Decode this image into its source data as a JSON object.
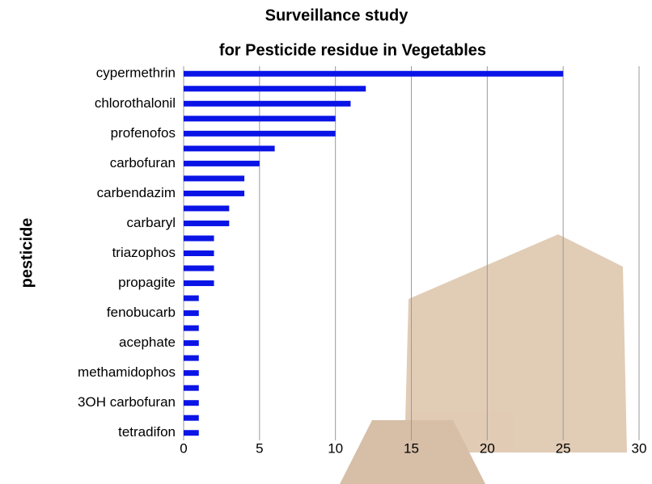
{
  "chart_data": {
    "type": "bar",
    "orientation": "horizontal",
    "title": [
      "Surveillance study",
      "for Pesticide residue in Vegetables"
    ],
    "y_label": "pesticide",
    "categories": [
      "cypermethrin",
      null,
      "chlorothalonil",
      null,
      "profenofos",
      null,
      "carbofuran",
      null,
      "carbendazim",
      null,
      "carbaryl",
      null,
      "triazophos",
      null,
      "propagite",
      null,
      "fenobucarb",
      null,
      "acephate",
      null,
      "methamidophos",
      null,
      "3OH carbofuran",
      null,
      "tetradifon"
    ],
    "values": [
      25,
      12,
      11,
      10,
      10,
      6,
      5,
      4,
      4,
      3,
      3,
      2,
      2,
      2,
      2,
      1,
      1,
      1,
      1,
      1,
      1,
      1,
      1,
      1,
      1
    ],
    "color": "#0a14e6",
    "xlim": [
      0,
      30
    ],
    "xticks": [
      0,
      5,
      10,
      15,
      20,
      25,
      30
    ],
    "grid": true
  }
}
